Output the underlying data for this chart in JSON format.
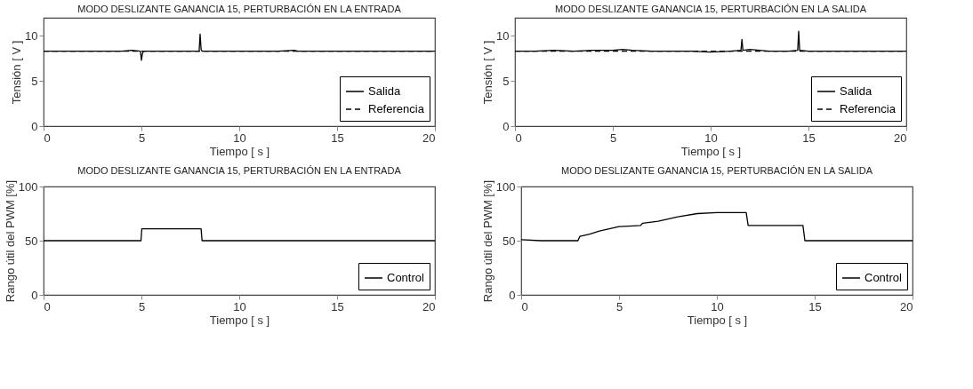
{
  "chart_data": [
    {
      "type": "line",
      "title": "MODO DESLIZANTE GANANCIA 15, PERTURBACIÓN EN LA ENTRADA",
      "xlabel": "Tiempo [ s ]",
      "ylabel": "Tensión [ V ]",
      "xlim": [
        0,
        20
      ],
      "ylim": [
        0,
        12
      ],
      "xticks": [
        0,
        5,
        10,
        15,
        20
      ],
      "yticks": [
        0,
        5,
        10
      ],
      "grid": false,
      "legend": "bottom right",
      "series": [
        {
          "name": "Salida",
          "color": "#000000",
          "line_style": "solid",
          "x": [
            0,
            1,
            2,
            3,
            4,
            4.5,
            4.95,
            5.0,
            5.05,
            5.1,
            6,
            7,
            7.95,
            8.0,
            8.05,
            8.1,
            9,
            10,
            11,
            12,
            12.8,
            13,
            14,
            15,
            16,
            17,
            18,
            19,
            20
          ],
          "values": [
            8.3,
            8.3,
            8.3,
            8.3,
            8.3,
            8.4,
            8.3,
            7.3,
            8.0,
            8.3,
            8.3,
            8.3,
            8.3,
            10.2,
            8.5,
            8.3,
            8.3,
            8.3,
            8.3,
            8.3,
            8.4,
            8.3,
            8.3,
            8.3,
            8.3,
            8.3,
            8.3,
            8.3,
            8.3
          ]
        },
        {
          "name": "Referencia",
          "color": "#000000",
          "line_style": "dashed",
          "x": [
            0,
            20
          ],
          "values": [
            8.3,
            8.3
          ]
        }
      ]
    },
    {
      "type": "line",
      "title": "MODO DESLIZANTE GANANCIA 15, PERTURBACIÓN EN LA SALIDA",
      "xlabel": "Tiempo [ s ]",
      "ylabel": "Tensión [ V ]",
      "xlim": [
        0,
        20
      ],
      "ylim": [
        0,
        12
      ],
      "xticks": [
        0,
        5,
        10,
        15,
        20
      ],
      "yticks": [
        0,
        5,
        10
      ],
      "grid": false,
      "legend": "bottom right",
      "series": [
        {
          "name": "Salida",
          "color": "#000000",
          "line_style": "solid",
          "x": [
            0,
            1,
            2,
            3,
            4,
            5,
            5.5,
            6,
            7,
            8,
            9,
            10,
            11,
            11.55,
            11.6,
            11.65,
            12,
            13,
            14,
            14.45,
            14.5,
            14.55,
            15,
            16,
            17,
            18,
            19,
            20
          ],
          "values": [
            8.3,
            8.3,
            8.4,
            8.3,
            8.4,
            8.4,
            8.5,
            8.4,
            8.3,
            8.3,
            8.3,
            8.2,
            8.3,
            8.4,
            9.6,
            8.4,
            8.5,
            8.3,
            8.3,
            8.4,
            10.5,
            8.4,
            8.3,
            8.3,
            8.3,
            8.3,
            8.3,
            8.3
          ]
        },
        {
          "name": "Referencia",
          "color": "#000000",
          "line_style": "dashed",
          "x": [
            0,
            20
          ],
          "values": [
            8.3,
            8.3
          ]
        }
      ]
    },
    {
      "type": "line",
      "title": "MODO DESLIZANTE GANANCIA 15, PERTURBACIÓN EN LA ENTRADA",
      "xlabel": "Tiempo [ s ]",
      "ylabel": "Rango útil del PWM [%]",
      "xlim": [
        0,
        20
      ],
      "ylim": [
        0,
        100
      ],
      "xticks": [
        0,
        5,
        10,
        15,
        20
      ],
      "yticks": [
        0,
        50,
        100
      ],
      "grid": false,
      "legend": "bottom right",
      "series": [
        {
          "name": "Control",
          "color": "#000000",
          "line_style": "solid",
          "x": [
            0,
            4.98,
            5.02,
            8.05,
            8.1,
            20
          ],
          "values": [
            50,
            50,
            61,
            61,
            50,
            50
          ]
        }
      ]
    },
    {
      "type": "line",
      "title": "MODO DESLIZANTE GANANCIA 15, PERTURBACIÓN EN LA SALIDA",
      "xlabel": "Tiempo [ s ]",
      "ylabel": "Rango útil del PWM [%]",
      "xlim": [
        0,
        20
      ],
      "ylim": [
        0,
        100
      ],
      "xticks": [
        0,
        5,
        10,
        15,
        20
      ],
      "yticks": [
        0,
        50,
        100
      ],
      "grid": false,
      "legend": "bottom right",
      "series": [
        {
          "name": "Control",
          "color": "#000000",
          "line_style": "solid",
          "x": [
            0,
            1,
            2.9,
            3.0,
            3.5,
            4,
            4.5,
            5,
            5.5,
            6.1,
            6.2,
            7,
            8,
            9,
            10,
            11.5,
            11.6,
            14.4,
            14.5,
            20
          ],
          "values": [
            51,
            50,
            50,
            54,
            56,
            59,
            61,
            63,
            63.5,
            64,
            66,
            68,
            72,
            75,
            76,
            76,
            64,
            64,
            50,
            50
          ]
        }
      ]
    }
  ]
}
